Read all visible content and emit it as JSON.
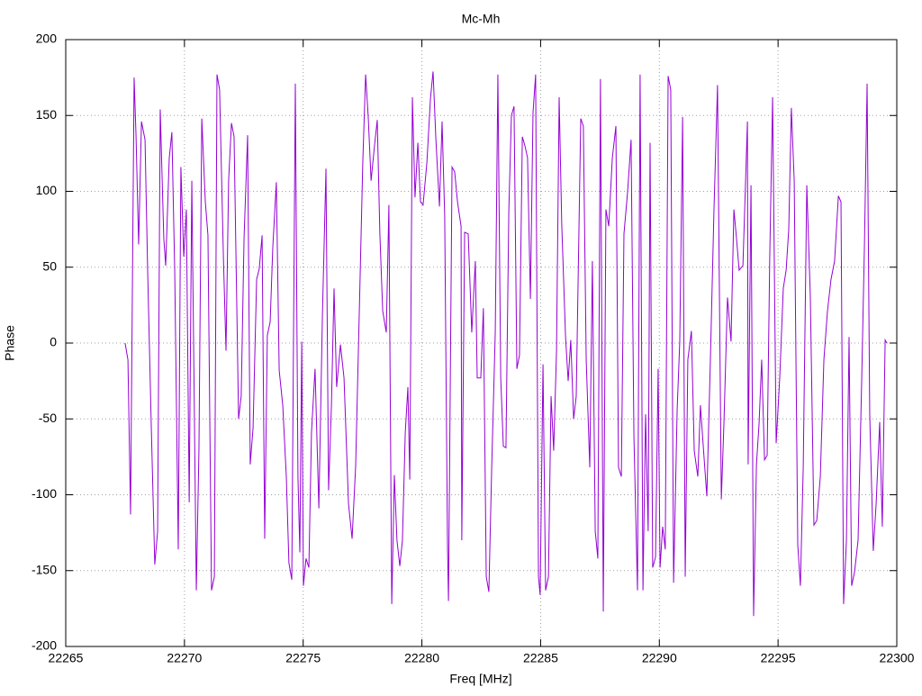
{
  "chart_data": {
    "type": "line",
    "title": "Mc-Mh",
    "x_label": "Freq [MHz]",
    "y_label": "Phase",
    "color": "#9400d3",
    "grid": true,
    "xlim": [
      22265,
      22300
    ],
    "xticks": [
      22265,
      22270,
      22275,
      22280,
      22285,
      22290,
      22295,
      22300
    ],
    "ylim": [
      -200,
      200
    ],
    "yticks": [
      -200,
      -150,
      -100,
      -50,
      0,
      50,
      100,
      150,
      200
    ],
    "x": [
      22267.5,
      22267.62,
      22267.73,
      22267.88,
      22267.96,
      22268.07,
      22268.19,
      22268.34,
      22268.45,
      22268.6,
      22268.75,
      22268.87,
      22268.98,
      22269.13,
      22269.21,
      22269.36,
      22269.47,
      22269.59,
      22269.74,
      22269.85,
      22269.97,
      22270.08,
      22270.2,
      22270.31,
      22270.5,
      22270.61,
      22270.73,
      22270.88,
      22270.99,
      22271.14,
      22271.26,
      22271.37,
      22271.48,
      22271.64,
      22271.75,
      22271.86,
      22271.98,
      22272.09,
      22272.28,
      22272.39,
      22272.51,
      22272.66,
      22272.77,
      22272.89,
      22273.04,
      22273.15,
      22273.27,
      22273.38,
      22273.49,
      22273.61,
      22273.72,
      22273.87,
      22273.99,
      22274.14,
      22274.29,
      22274.4,
      22274.52,
      22274.67,
      22274.78,
      22274.86,
      22274.94,
      22275.01,
      22275.12,
      22275.24,
      22275.35,
      22275.5,
      22275.66,
      22275.81,
      22275.96,
      22276.07,
      22276.19,
      22276.3,
      22276.41,
      22276.57,
      22276.72,
      22276.91,
      22277.06,
      22277.21,
      22277.36,
      22277.51,
      22277.63,
      22277.74,
      22277.86,
      22278.01,
      22278.12,
      22278.23,
      22278.35,
      22278.5,
      22278.61,
      22278.73,
      22278.84,
      22278.95,
      22279.07,
      22279.18,
      22279.3,
      22279.41,
      22279.49,
      22279.6,
      22279.71,
      22279.83,
      22279.94,
      22280.05,
      22280.21,
      22280.36,
      22280.47,
      22280.59,
      22280.74,
      22280.85,
      22280.96,
      22281.08,
      22281.12,
      22281.27,
      22281.38,
      22281.5,
      22281.65,
      22281.68,
      22281.8,
      22281.95,
      22282.1,
      22282.25,
      22282.33,
      22282.48,
      22282.59,
      22282.71,
      22282.82,
      22282.94,
      22283.09,
      22283.2,
      22283.32,
      22283.43,
      22283.54,
      22283.66,
      22283.77,
      22283.88,
      22284.0,
      22284.11,
      22284.23,
      22284.34,
      22284.45,
      22284.57,
      22284.68,
      22284.79,
      22284.91,
      22284.98,
      22285.1,
      22285.21,
      22285.33,
      22285.44,
      22285.55,
      22285.67,
      22285.78,
      22285.89,
      22286.05,
      22286.16,
      22286.27,
      22286.39,
      22286.5,
      22286.69,
      22286.8,
      22286.92,
      22287.07,
      22287.18,
      22287.3,
      22287.41,
      22287.52,
      22287.64,
      22287.75,
      22287.87,
      22288.02,
      22288.17,
      22288.28,
      22288.4,
      22288.51,
      22288.66,
      22288.81,
      22288.93,
      22289.08,
      22289.19,
      22289.31,
      22289.42,
      22289.53,
      22289.61,
      22289.72,
      22289.84,
      22289.95,
      22290.03,
      22290.14,
      22290.25,
      22290.37,
      22290.48,
      22290.6,
      22290.75,
      22290.86,
      22290.98,
      22291.09,
      22291.2,
      22291.35,
      22291.47,
      22291.62,
      22291.73,
      22291.89,
      22292.0,
      22292.15,
      22292.3,
      22292.45,
      22292.61,
      22292.72,
      22292.87,
      22293.02,
      22293.14,
      22293.25,
      22293.36,
      22293.52,
      22293.71,
      22293.74,
      22293.86,
      22293.97,
      22294.09,
      22294.2,
      22294.31,
      22294.43,
      22294.54,
      22294.65,
      22294.77,
      22294.92,
      22295.07,
      22295.22,
      22295.34,
      22295.45,
      22295.56,
      22295.68,
      22295.83,
      22295.94,
      22296.06,
      22296.21,
      22296.36,
      22296.51,
      22296.63,
      22296.78,
      22296.93,
      22297.08,
      22297.23,
      22297.38,
      22297.54,
      22297.65,
      22297.76,
      22297.88,
      22297.99,
      22298.1,
      22298.22,
      22298.37,
      22298.52,
      22298.64,
      22298.75,
      22298.86,
      22299.01,
      22299.13,
      22299.28,
      22299.39,
      22299.51,
      22299.58
    ],
    "values": [
      0,
      -11,
      -113,
      175,
      137,
      65,
      146,
      134,
      48,
      -53,
      -146,
      -124,
      154,
      69,
      51,
      122,
      139,
      48,
      -136,
      116,
      57,
      88,
      -105,
      107,
      -163,
      -71,
      148,
      93,
      71,
      -163,
      -154,
      177,
      167,
      57,
      -5,
      107,
      145,
      136,
      -50,
      -35,
      69,
      137,
      -80,
      -56,
      42,
      49,
      71,
      -129,
      5,
      14,
      63,
      106,
      -18,
      -41,
      -88,
      -145,
      -156,
      171,
      -88,
      -138,
      1,
      -160,
      -142,
      -148,
      -59,
      -17,
      -109,
      18,
      115,
      -97,
      -41,
      36,
      -29,
      -1,
      -23,
      -106,
      -129,
      -81,
      18,
      119,
      177,
      149,
      107,
      131,
      147,
      72,
      21,
      7,
      91,
      -172,
      -87,
      -130,
      -147,
      -130,
      -59,
      -29,
      -90,
      162,
      96,
      132,
      93,
      91,
      119,
      161,
      179,
      134,
      90,
      146,
      84,
      -135,
      -170,
      116,
      113,
      93,
      77,
      -130,
      73,
      72,
      7,
      54,
      -23,
      -23,
      23,
      -154,
      -164,
      -82,
      7,
      177,
      -23,
      -68,
      -69,
      87,
      150,
      156,
      -17,
      -8,
      136,
      130,
      122,
      29,
      152,
      177,
      -154,
      -166,
      -14,
      -163,
      -154,
      -35,
      -71,
      -5,
      162,
      78,
      4,
      -25,
      2,
      -50,
      -35,
      148,
      143,
      -11,
      -82,
      54,
      -124,
      -142,
      174,
      -177,
      88,
      77,
      122,
      143,
      -82,
      -88,
      72,
      99,
      134,
      -62,
      -163,
      177,
      -163,
      -47,
      -124,
      132,
      -148,
      -141,
      -17,
      -148,
      -121,
      -136,
      176,
      167,
      -158,
      -44,
      1,
      149,
      -154,
      -11,
      8,
      -71,
      -88,
      -41,
      -77,
      -101,
      -11,
      87,
      170,
      -103,
      -53,
      30,
      1,
      88,
      69,
      48,
      51,
      146,
      -80,
      104,
      -180,
      -80,
      -53,
      -11,
      -77,
      -74,
      57,
      162,
      -66,
      -23,
      36,
      48,
      75,
      155,
      107,
      -133,
      -160,
      -82,
      104,
      30,
      -120,
      -117,
      -88,
      -11,
      21,
      42,
      54,
      97,
      93,
      -172,
      -130,
      4,
      -160,
      -151,
      -130,
      -26,
      66,
      171,
      -47,
      -137,
      -106,
      -52,
      -121,
      2,
      0
    ]
  }
}
